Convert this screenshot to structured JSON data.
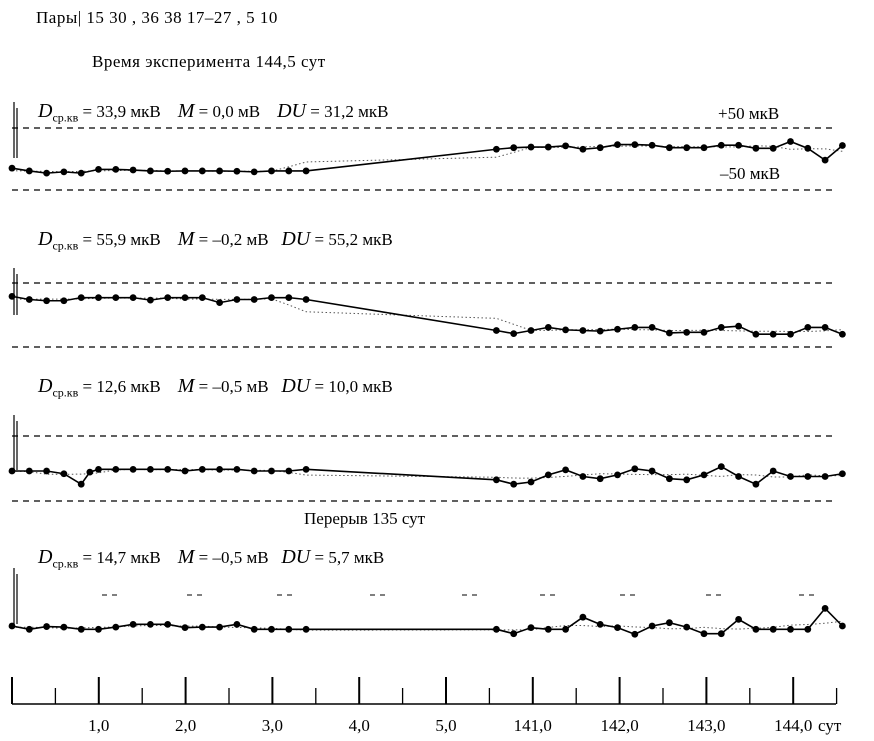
{
  "header": {
    "pairs_line": "Пары| 15  30  ,  36  38    17–27  ,  5  10",
    "duration_line": "Время эксперимента 144,5 сут"
  },
  "annotations": {
    "upper_ref": "+50 мкВ",
    "lower_ref": "–50 мкВ",
    "gap_note": "Перерыв 135 сут"
  },
  "chart_data": {
    "type": "line",
    "x_axis": {
      "unit": "сут",
      "tick_labels": [
        "1,0",
        "2,0",
        "3,0",
        "4,0",
        "5,0",
        "141,0",
        "142,0",
        "143,0",
        "144,0"
      ],
      "last_tick_suffix": "сут"
    },
    "series": [
      {
        "name": "Пары 15 30",
        "stats": {
          "d_label": "D",
          "d_sub": "ср.кв",
          "d": "= 33,9 мкВ",
          "m_label": "M",
          "m": "= 0,0 мВ",
          "du_label": "DU",
          "du": "= 31,2 мкВ"
        },
        "refs": [
          50,
          -50
        ],
        "x": [
          0.0,
          0.2,
          0.4,
          0.6,
          0.8,
          1.0,
          1.2,
          1.4,
          1.6,
          1.8,
          2.0,
          2.2,
          2.4,
          2.6,
          2.8,
          3.0,
          3.2,
          3.4,
          5.6,
          5.8,
          6.0,
          6.2,
          6.4,
          6.6,
          6.8,
          7.0,
          7.2,
          7.4,
          7.6,
          7.8,
          8.0,
          8.2,
          8.4,
          8.6,
          8.8,
          9.0,
          9.2,
          9.4,
          9.6
        ],
        "y": [
          -36,
          -45,
          -52,
          -48,
          -52,
          -40,
          -40,
          -42,
          -45,
          -46,
          -45,
          -45,
          -45,
          -46,
          -48,
          -45,
          -45,
          -45,
          25,
          30,
          32,
          32,
          36,
          25,
          30,
          40,
          40,
          38,
          30,
          30,
          30,
          38,
          38,
          28,
          28,
          50,
          28,
          -10,
          37
        ]
      },
      {
        "name": "Пары 36 38",
        "stats": {
          "d_label": "D",
          "d_sub": "ср.кв",
          "d": "= 55,9 мкВ",
          "m_label": "M",
          "m": "= –0,2 мВ",
          "du_label": "DU",
          "du": "= 55,2 мкВ"
        },
        "refs": [
          50,
          -50
        ],
        "x": [
          0.0,
          0.2,
          0.4,
          0.6,
          0.8,
          1.0,
          1.2,
          1.4,
          1.6,
          1.8,
          2.0,
          2.2,
          2.4,
          2.6,
          2.8,
          3.0,
          3.2,
          3.4,
          5.6,
          5.8,
          6.0,
          6.2,
          6.4,
          6.6,
          6.8,
          7.0,
          7.2,
          7.4,
          7.6,
          7.8,
          8.0,
          8.2,
          8.4,
          8.6,
          8.8,
          9.0,
          9.2,
          9.4,
          9.6
        ],
        "y": [
          60,
          50,
          46,
          46,
          56,
          56,
          56,
          56,
          48,
          56,
          56,
          56,
          40,
          50,
          50,
          56,
          56,
          50,
          -50,
          -60,
          -50,
          -40,
          -48,
          -50,
          -52,
          -46,
          -40,
          -40,
          -58,
          -56,
          -56,
          -40,
          -36,
          -62,
          -62,
          -62,
          -40,
          -40,
          -62
        ]
      },
      {
        "name": "Пары 17–27",
        "stats": {
          "d_label": "D",
          "d_sub": "ср.кв",
          "d": "= 12,6 мкВ",
          "m_label": "M",
          "m": "= –0,5 мВ",
          "du_label": "DU",
          "du": "= 10,0 мкВ"
        },
        "refs": [
          50,
          -50
        ],
        "x": [
          0.0,
          0.2,
          0.4,
          0.6,
          0.8,
          0.9,
          1.0,
          1.2,
          1.4,
          1.6,
          1.8,
          2.0,
          2.2,
          2.4,
          2.6,
          2.8,
          3.0,
          3.2,
          3.4,
          5.6,
          5.8,
          6.0,
          6.2,
          6.4,
          6.6,
          6.8,
          7.0,
          7.2,
          7.4,
          7.6,
          7.8,
          8.0,
          8.2,
          8.4,
          8.6,
          8.8,
          9.0,
          9.2,
          9.4,
          9.6
        ],
        "y": [
          0,
          0,
          0,
          -5,
          -24,
          -2,
          3,
          3,
          3,
          3,
          3,
          0,
          3,
          3,
          3,
          0,
          0,
          0,
          3,
          -16,
          -24,
          -20,
          -7,
          2,
          -10,
          -14,
          -7,
          4,
          0,
          -14,
          -16,
          -7,
          8,
          -10,
          -24,
          0,
          -10,
          -10,
          -10,
          -5
        ]
      },
      {
        "name": "Пары 5 10",
        "stats": {
          "d_label": "D",
          "d_sub": "ср.кв",
          "d": "= 14,7 мкВ",
          "m_label": "M",
          "m": "= –0,5 мВ",
          "du_label": "DU",
          "du": "= 5,7 мкВ"
        },
        "refs": [
          50,
          -50
        ],
        "x": [
          0.0,
          0.2,
          0.4,
          0.6,
          0.8,
          1.0,
          1.2,
          1.4,
          1.6,
          1.8,
          2.0,
          2.2,
          2.4,
          2.6,
          2.8,
          3.0,
          3.2,
          3.4,
          5.6,
          5.8,
          6.0,
          6.2,
          6.4,
          6.6,
          6.8,
          7.0,
          7.2,
          7.4,
          7.6,
          7.8,
          8.0,
          8.2,
          8.4,
          8.6,
          8.8,
          9.0,
          9.2,
          9.4,
          9.6
        ],
        "y": [
          0,
          -6,
          -1,
          -2,
          -6,
          -6,
          -2,
          3,
          3,
          3,
          -3,
          -2,
          -2,
          3,
          -6,
          -6,
          -6,
          -6,
          -6,
          -14,
          -3,
          -6,
          -6,
          16,
          3,
          -3,
          -15,
          0,
          6,
          -2,
          -14,
          -14,
          12,
          -6,
          -6,
          -6,
          -6,
          32,
          0
        ]
      }
    ]
  }
}
